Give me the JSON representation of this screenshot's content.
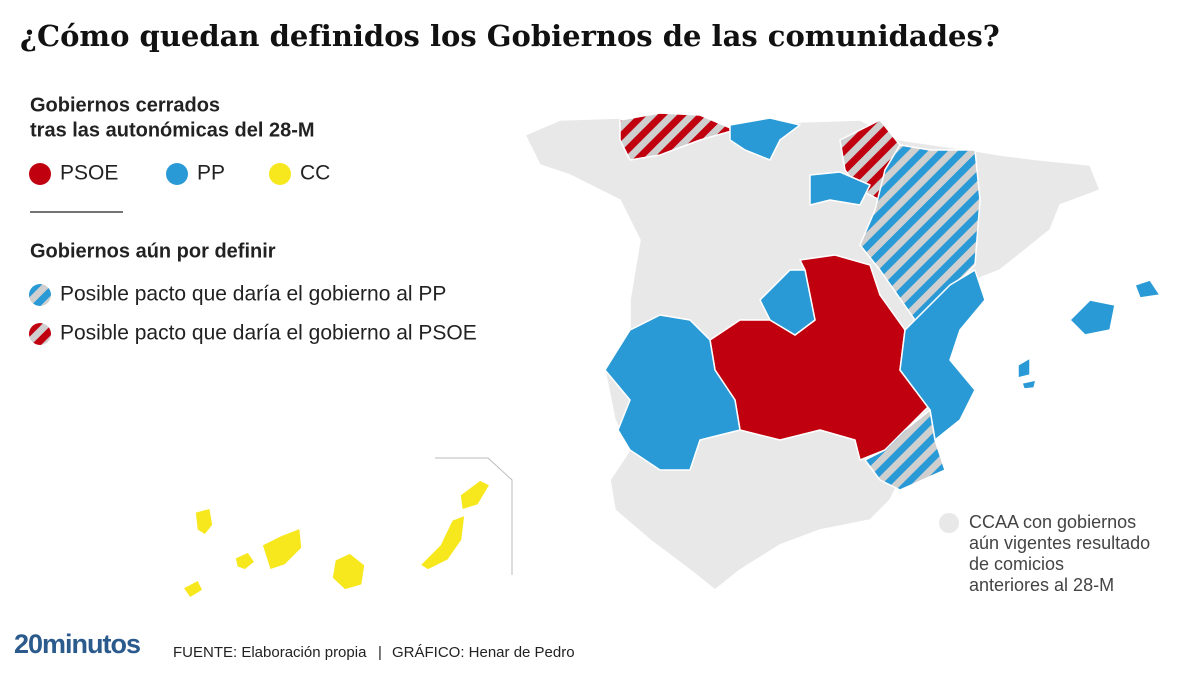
{
  "title": "¿Cómo quedan definidos los Gobiernos de las comunidades?",
  "legend": {
    "closed_heading": [
      "Gobiernos cerrados",
      "tras las autonómicas del 28-M"
    ],
    "closed_items": [
      {
        "label": "PSOE",
        "color": "#c0000f"
      },
      {
        "label": "PP",
        "color": "#2a9ad6"
      },
      {
        "label": "CC",
        "color": "#f7e81e"
      }
    ],
    "pending_heading": "Gobiernos aún por definir",
    "pending_items": [
      {
        "label": "Posible pacto que daría el gobierno al PP",
        "color": "#2a9ad6"
      },
      {
        "label": "Posible pacto que daría el gobierno al PSOE",
        "color": "#c0000f"
      }
    ]
  },
  "note": {
    "color": "#e8e8e8",
    "lines": [
      "CCAA con gobiernos",
      "aún vigentes resultado",
      "de comicios",
      "anteriores al 28-M"
    ]
  },
  "footer": {
    "brand": "20minutos",
    "source": "FUENTE: Elaboración propia",
    "separator": "|",
    "credit": "GRÁFICO: Henar de Pedro"
  }
}
